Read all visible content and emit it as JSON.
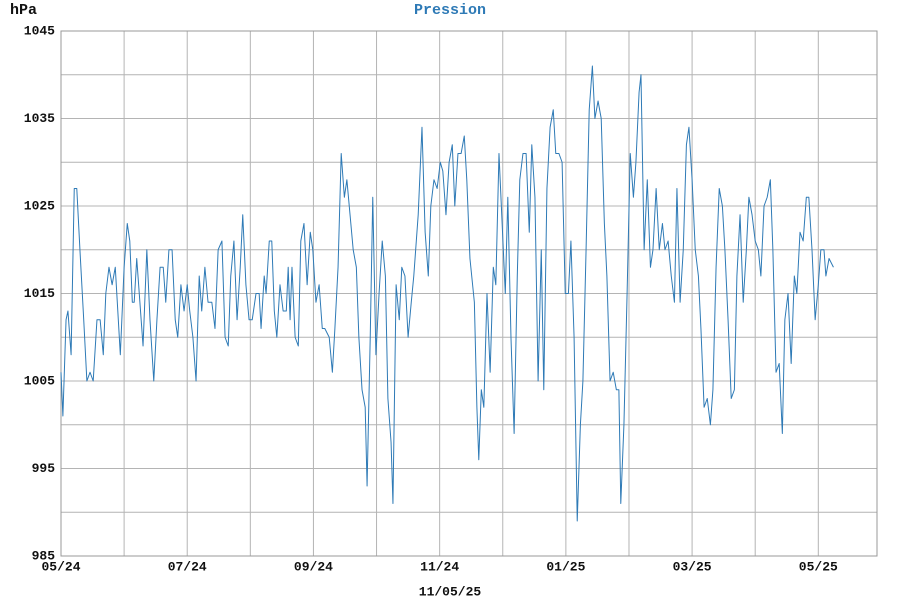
{
  "chart_data": {
    "type": "line",
    "title": "Pression",
    "y_label": "hPa",
    "footer": "11/05/25",
    "color": "#2e7ab6",
    "grid": true,
    "xlim": [
      0,
      12.93
    ],
    "xticks": [
      {
        "value": 0,
        "label": "05/24"
      },
      {
        "value": 2,
        "label": "07/24"
      },
      {
        "value": 4,
        "label": "09/24"
      },
      {
        "value": 6,
        "label": "11/24"
      },
      {
        "value": 8,
        "label": "01/25"
      },
      {
        "value": 10,
        "label": "03/25"
      },
      {
        "value": 12,
        "label": "05/25"
      }
    ],
    "xgrid": [
      1,
      3,
      5,
      7,
      9,
      11
    ],
    "ylim": [
      985,
      1045
    ],
    "yticks": [
      985,
      995,
      1005,
      1015,
      1025,
      1035,
      1045
    ],
    "ygrid": [
      990,
      1000,
      1010,
      1020,
      1030,
      1040
    ],
    "x": [
      0,
      0.03,
      0.08,
      0.11,
      0.16,
      0.21,
      0.25,
      0.3,
      0.36,
      0.41,
      0.46,
      0.51,
      0.57,
      0.62,
      0.67,
      0.71,
      0.76,
      0.81,
      0.86,
      0.9,
      0.94,
      1.0,
      1.05,
      1.09,
      1.13,
      1.16,
      1.2,
      1.25,
      1.3,
      1.36,
      1.41,
      1.47,
      1.52,
      1.57,
      1.62,
      1.66,
      1.71,
      1.76,
      1.81,
      1.85,
      1.9,
      1.95,
      2.0,
      2.04,
      2.09,
      2.14,
      2.19,
      2.23,
      2.28,
      2.33,
      2.39,
      2.44,
      2.49,
      2.55,
      2.6,
      2.65,
      2.69,
      2.74,
      2.79,
      2.84,
      2.88,
      2.93,
      2.98,
      3.03,
      3.09,
      3.14,
      3.17,
      3.22,
      3.25,
      3.3,
      3.34,
      3.38,
      3.42,
      3.47,
      3.52,
      3.57,
      3.6,
      3.63,
      3.66,
      3.71,
      3.76,
      3.8,
      3.85,
      3.9,
      3.95,
      3.99,
      4.04,
      4.09,
      4.14,
      4.18,
      4.25,
      4.3,
      4.34,
      4.39,
      4.44,
      4.49,
      4.53,
      4.58,
      4.63,
      4.68,
      4.72,
      4.77,
      4.82,
      4.85,
      4.9,
      4.94,
      4.99,
      5.04,
      5.09,
      5.14,
      5.18,
      5.23,
      5.26,
      5.31,
      5.36,
      5.4,
      5.45,
      5.5,
      5.55,
      5.59,
      5.66,
      5.72,
      5.77,
      5.82,
      5.86,
      5.91,
      5.96,
      6.01,
      6.05,
      6.1,
      6.15,
      6.2,
      6.24,
      6.29,
      6.34,
      6.39,
      6.43,
      6.48,
      6.55,
      6.59,
      6.62,
      6.66,
      6.7,
      6.75,
      6.8,
      6.85,
      6.89,
      6.94,
      6.99,
      7.04,
      7.08,
      7.13,
      7.18,
      7.23,
      7.27,
      7.32,
      7.37,
      7.42,
      7.46,
      7.51,
      7.56,
      7.61,
      7.65,
      7.7,
      7.75,
      7.8,
      7.84,
      7.89,
      7.94,
      7.99,
      8.04,
      8.08,
      8.13,
      8.18,
      8.23,
      8.27,
      8.32,
      8.37,
      8.42,
      8.46,
      8.51,
      8.56,
      8.61,
      8.65,
      8.7,
      8.75,
      8.8,
      8.84,
      8.87,
      8.92,
      8.97,
      9.02,
      9.07,
      9.11,
      9.16,
      9.19,
      9.24,
      9.29,
      9.34,
      9.38,
      9.43,
      9.48,
      9.53,
      9.57,
      9.62,
      9.67,
      9.72,
      9.76,
      9.81,
      9.86,
      9.91,
      9.95,
      10.0,
      10.05,
      10.1,
      10.14,
      10.19,
      10.24,
      10.29,
      10.33,
      10.38,
      10.43,
      10.48,
      10.52,
      10.57,
      10.62,
      10.67,
      10.71,
      10.76,
      10.81,
      10.86,
      10.9,
      10.95,
      11.0,
      11.05,
      11.09,
      11.14,
      11.19,
      11.24,
      11.28,
      11.33,
      11.38,
      11.43,
      11.47,
      11.52,
      11.57,
      11.62,
      11.66,
      11.71,
      11.76,
      11.81,
      11.85,
      11.9,
      11.95,
      12.0,
      12.04,
      12.09,
      12.12,
      12.17,
      12.24
    ],
    "values": [
      1006,
      1001,
      1012,
      1013,
      1008,
      1027,
      1027,
      1020,
      1012,
      1005,
      1006,
      1005,
      1012,
      1012,
      1008,
      1015,
      1018,
      1016,
      1018,
      1013,
      1008,
      1018,
      1023,
      1021,
      1014,
      1014,
      1019,
      1014,
      1009,
      1020,
      1012,
      1005,
      1012,
      1018,
      1018,
      1014,
      1020,
      1020,
      1012,
      1010,
      1016,
      1013,
      1016,
      1013,
      1010,
      1005,
      1017,
      1013,
      1018,
      1014,
      1014,
      1011,
      1020,
      1021,
      1010,
      1009,
      1017,
      1021,
      1012,
      1018,
      1024,
      1016,
      1012,
      1012,
      1015,
      1015,
      1011,
      1017,
      1015,
      1021,
      1021,
      1013,
      1010,
      1016,
      1013,
      1013,
      1018,
      1012,
      1018,
      1010,
      1009,
      1021,
      1023,
      1016,
      1022,
      1020,
      1014,
      1016,
      1011,
      1011,
      1010,
      1006,
      1011,
      1018,
      1031,
      1026,
      1028,
      1024,
      1020,
      1018,
      1010,
      1004,
      1002,
      993,
      1010,
      1026,
      1008,
      1015,
      1021,
      1017,
      1003,
      998,
      991,
      1016,
      1012,
      1018,
      1017,
      1010,
      1014,
      1017,
      1024,
      1034,
      1022,
      1017,
      1025,
      1028,
      1027,
      1030,
      1029,
      1024,
      1030,
      1032,
      1025,
      1031,
      1031,
      1033,
      1028,
      1019,
      1014,
      1002,
      996,
      1004,
      1002,
      1015,
      1006,
      1018,
      1016,
      1031,
      1023,
      1015,
      1026,
      1010,
      999,
      1017,
      1028,
      1031,
      1031,
      1022,
      1032,
      1026,
      1005,
      1020,
      1004,
      1027,
      1034,
      1036,
      1031,
      1031,
      1030,
      1015,
      1015,
      1021,
      1010,
      989,
      1000,
      1005,
      1020,
      1036,
      1041,
      1035,
      1037,
      1035,
      1023,
      1017,
      1005,
      1006,
      1004,
      1004,
      991,
      1000,
      1015,
      1031,
      1026,
      1030,
      1038,
      1040,
      1020,
      1028,
      1018,
      1020,
      1027,
      1020,
      1023,
      1020,
      1021,
      1017,
      1014,
      1027,
      1014,
      1020,
      1032,
      1034,
      1028,
      1020,
      1017,
      1011,
      1002,
      1003,
      1000,
      1004,
      1018,
      1027,
      1025,
      1020,
      1012,
      1003,
      1004,
      1017,
      1024,
      1014,
      1020,
      1026,
      1024,
      1021,
      1020,
      1017,
      1025,
      1026,
      1028,
      1020,
      1006,
      1007,
      999,
      1012,
      1015,
      1007,
      1017,
      1015,
      1022,
      1021,
      1026,
      1026,
      1020,
      1012,
      1016,
      1020,
      1020,
      1017,
      1019,
      1018
    ]
  }
}
